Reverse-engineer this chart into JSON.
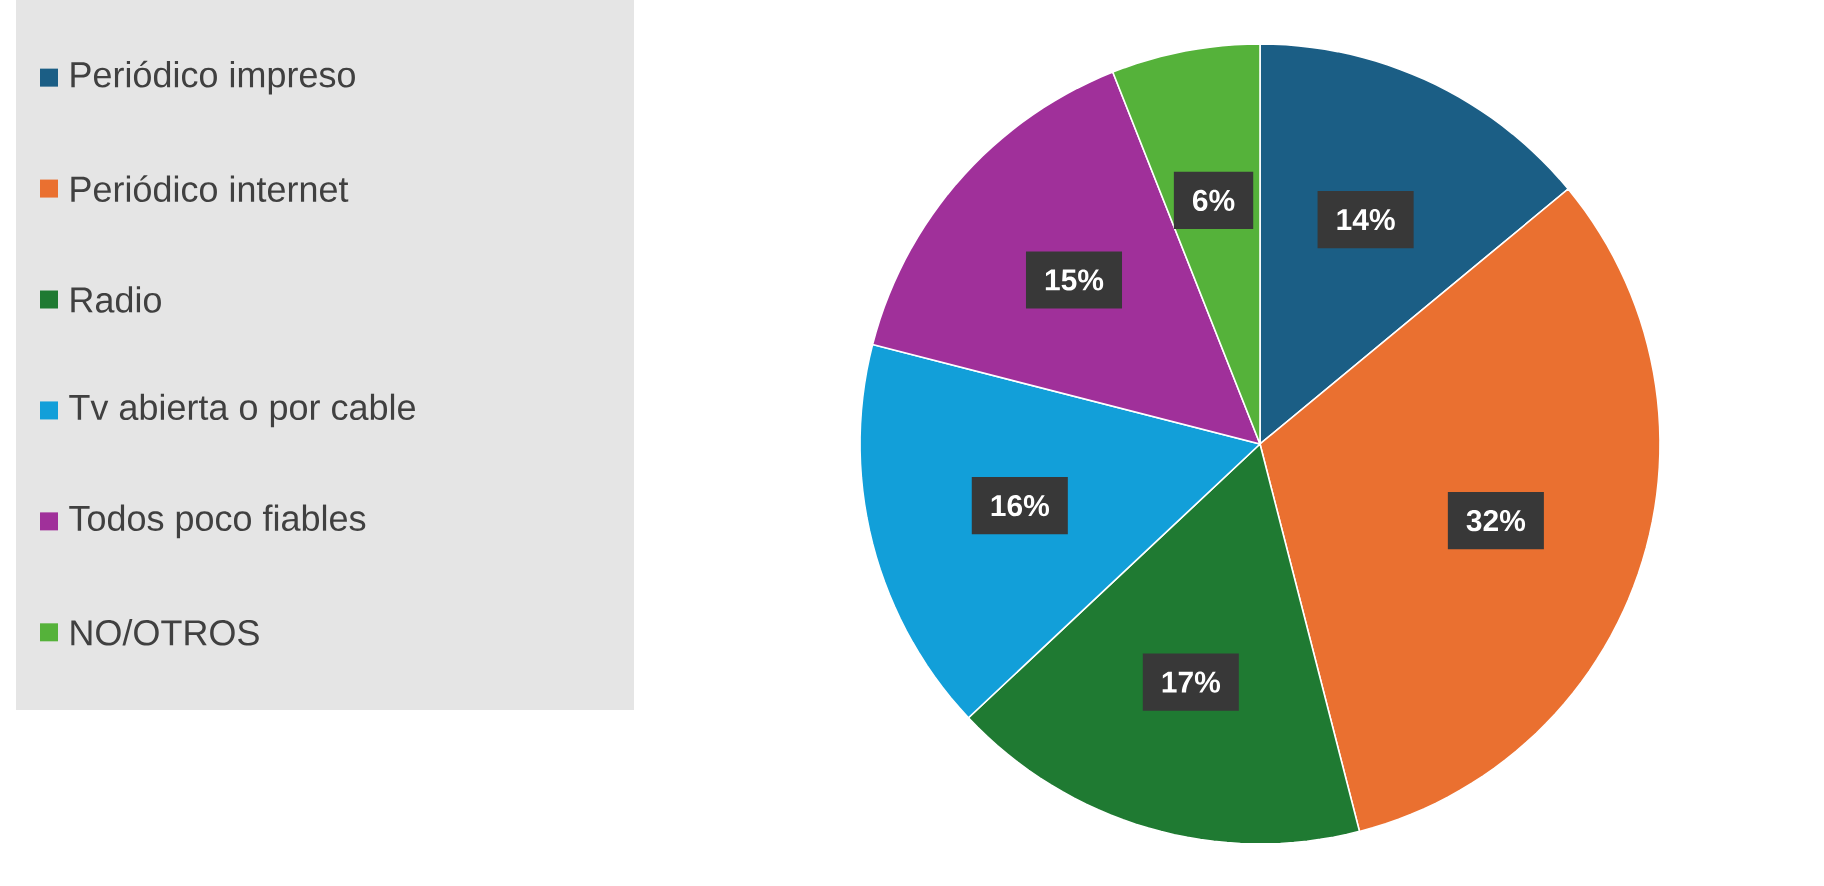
{
  "chart_data": {
    "type": "pie",
    "categories": [
      "Periódico impreso",
      "Periódico internet",
      "Radio",
      "Tv abierta o por cable",
      "Todos poco fiables",
      "NO/OTROS"
    ],
    "values": [
      14,
      32,
      17,
      16,
      15,
      6
    ],
    "colors": [
      "#1b5e85",
      "#ea7030",
      "#1f7a32",
      "#129fd9",
      "#a0309a",
      "#55b23a"
    ],
    "value_labels": [
      "14%",
      "32%",
      "17%",
      "16%",
      "15%",
      "6%"
    ],
    "legend": "left"
  }
}
